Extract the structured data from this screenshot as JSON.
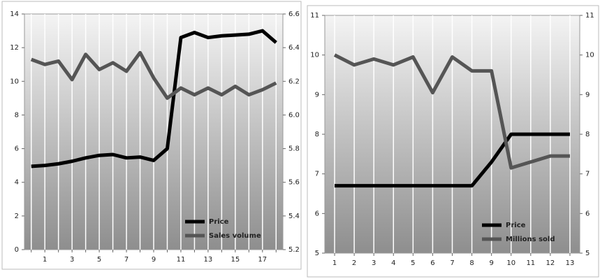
{
  "chart_data": [
    {
      "type": "line",
      "categories": [
        null,
        "1",
        null,
        "3",
        null,
        "5",
        null,
        "7",
        null,
        "9",
        null,
        "11",
        null,
        "13",
        null,
        "15",
        null,
        "17",
        null
      ],
      "series": [
        {
          "name": "Price",
          "color": "#000000",
          "axis": "y",
          "values": [
            4.95,
            5.0,
            5.1,
            5.25,
            5.45,
            5.6,
            5.65,
            5.45,
            5.5,
            5.3,
            6.0,
            12.6,
            12.9,
            12.6,
            12.7,
            12.75,
            12.8,
            13.0,
            12.3
          ]
        },
        {
          "name": "Sales volume",
          "color": "#555555",
          "axis": "y2",
          "values": [
            6.33,
            6.3,
            6.32,
            6.21,
            6.36,
            6.27,
            6.31,
            6.26,
            6.37,
            6.22,
            6.1,
            6.16,
            6.12,
            6.16,
            6.12,
            6.17,
            6.12,
            6.15,
            6.19
          ]
        }
      ],
      "ylim": [
        0,
        14
      ],
      "yticks": [
        0,
        2,
        4,
        6,
        8,
        10,
        12,
        14
      ],
      "y2lim": [
        5.2,
        6.6
      ],
      "y2ticks": [
        5.2,
        5.4,
        5.6,
        5.8,
        {
          "value": 6.0,
          "label": "6.0"
        },
        6.2,
        6.4,
        6.6
      ],
      "grid": "x",
      "legend": "lower right"
    },
    {
      "type": "line",
      "categories": [
        "1",
        "2",
        "3",
        "4",
        "5",
        "6",
        "7",
        "8",
        "9",
        "10",
        "11",
        "12",
        "13"
      ],
      "series": [
        {
          "name": "Price",
          "color": "#000000",
          "axis": "y",
          "values": [
            6.7,
            6.7,
            6.7,
            6.7,
            6.7,
            6.7,
            6.7,
            6.7,
            7.3,
            8.0,
            8.0,
            8.0,
            8.0
          ]
        },
        {
          "name": "Millions sold",
          "color": "#555555",
          "axis": "y2",
          "values": [
            10.0,
            9.75,
            9.9,
            9.75,
            9.95,
            9.05,
            9.95,
            9.6,
            9.6,
            7.15,
            7.3,
            7.45,
            7.45
          ]
        }
      ],
      "ylim": [
        5,
        11
      ],
      "yticks": [
        5,
        6,
        7,
        8,
        9,
        10,
        11
      ],
      "y2lim": [
        5,
        11
      ],
      "y2ticks": [
        5,
        6,
        7,
        8,
        9,
        10,
        11
      ],
      "grid": "x",
      "legend": "lower right"
    }
  ]
}
